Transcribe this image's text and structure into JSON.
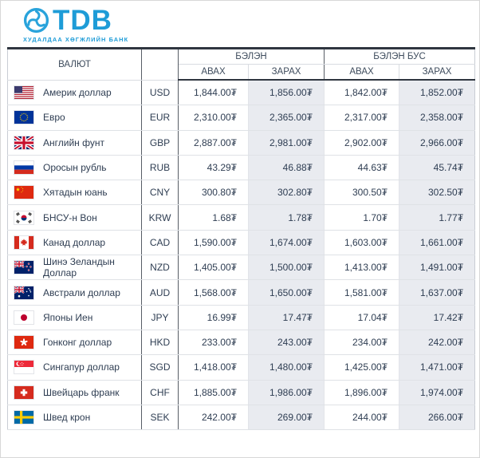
{
  "brand": {
    "logo_text": "TDB",
    "tagline": "ХУДАЛДАА ХӨГЖЛИЙН БАНК",
    "logo_icon": "tdb-swirl-icon",
    "color": "#1e9cd7"
  },
  "table": {
    "header": {
      "currency": "ВАЛЮТ",
      "cash": "БЭЛЭН",
      "noncash": "БЭЛЭН БУС",
      "buy": "АВАХ",
      "sell": "ЗАРАХ"
    },
    "currency_symbol": "₮",
    "sell_column_bg": "#e9ebf0",
    "rows": [
      {
        "flag": "us",
        "name": "Америк доллар",
        "code": "USD",
        "cash_buy": "1,844.00₮",
        "cash_sell": "1,856.00₮",
        "noncash_buy": "1,842.00₮",
        "noncash_sell": "1,852.00₮"
      },
      {
        "flag": "eu",
        "name": "Евро",
        "code": "EUR",
        "cash_buy": "2,310.00₮",
        "cash_sell": "2,365.00₮",
        "noncash_buy": "2,317.00₮",
        "noncash_sell": "2,358.00₮"
      },
      {
        "flag": "gb",
        "name": "Английн фунт",
        "code": "GBP",
        "cash_buy": "2,887.00₮",
        "cash_sell": "2,981.00₮",
        "noncash_buy": "2,902.00₮",
        "noncash_sell": "2,966.00₮"
      },
      {
        "flag": "ru",
        "name": "Оросын рубль",
        "code": "RUB",
        "cash_buy": "43.29₮",
        "cash_sell": "46.88₮",
        "noncash_buy": "44.63₮",
        "noncash_sell": "45.74₮"
      },
      {
        "flag": "cn",
        "name": "Хятадын юань",
        "code": "CNY",
        "cash_buy": "300.80₮",
        "cash_sell": "302.80₮",
        "noncash_buy": "300.50₮",
        "noncash_sell": "302.50₮"
      },
      {
        "flag": "kr",
        "name": "БНСУ-н Вон",
        "code": "KRW",
        "cash_buy": "1.68₮",
        "cash_sell": "1.78₮",
        "noncash_buy": "1.70₮",
        "noncash_sell": "1.77₮"
      },
      {
        "flag": "ca",
        "name": "Канад доллар",
        "code": "CAD",
        "cash_buy": "1,590.00₮",
        "cash_sell": "1,674.00₮",
        "noncash_buy": "1,603.00₮",
        "noncash_sell": "1,661.00₮"
      },
      {
        "flag": "nz",
        "name": "Шинэ Зеландын Доллар",
        "code": "NZD",
        "cash_buy": "1,405.00₮",
        "cash_sell": "1,500.00₮",
        "noncash_buy": "1,413.00₮",
        "noncash_sell": "1,491.00₮"
      },
      {
        "flag": "au",
        "name": "Австрали доллар",
        "code": "AUD",
        "cash_buy": "1,568.00₮",
        "cash_sell": "1,650.00₮",
        "noncash_buy": "1,581.00₮",
        "noncash_sell": "1,637.00₮"
      },
      {
        "flag": "jp",
        "name": "Японы Иен",
        "code": "JPY",
        "cash_buy": "16.99₮",
        "cash_sell": "17.47₮",
        "noncash_buy": "17.04₮",
        "noncash_sell": "17.42₮"
      },
      {
        "flag": "hk",
        "name": "Гонконг доллар",
        "code": "HKD",
        "cash_buy": "233.00₮",
        "cash_sell": "243.00₮",
        "noncash_buy": "234.00₮",
        "noncash_sell": "242.00₮"
      },
      {
        "flag": "sg",
        "name": "Сингапур доллар",
        "code": "SGD",
        "cash_buy": "1,418.00₮",
        "cash_sell": "1,480.00₮",
        "noncash_buy": "1,425.00₮",
        "noncash_sell": "1,471.00₮"
      },
      {
        "flag": "ch",
        "name": "Швейцарь франк",
        "code": "CHF",
        "cash_buy": "1,885.00₮",
        "cash_sell": "1,986.00₮",
        "noncash_buy": "1,896.00₮",
        "noncash_sell": "1,974.00₮"
      },
      {
        "flag": "se",
        "name": "Швед крон",
        "code": "SEK",
        "cash_buy": "242.00₮",
        "cash_sell": "269.00₮",
        "noncash_buy": "244.00₮",
        "noncash_sell": "266.00₮"
      }
    ]
  }
}
